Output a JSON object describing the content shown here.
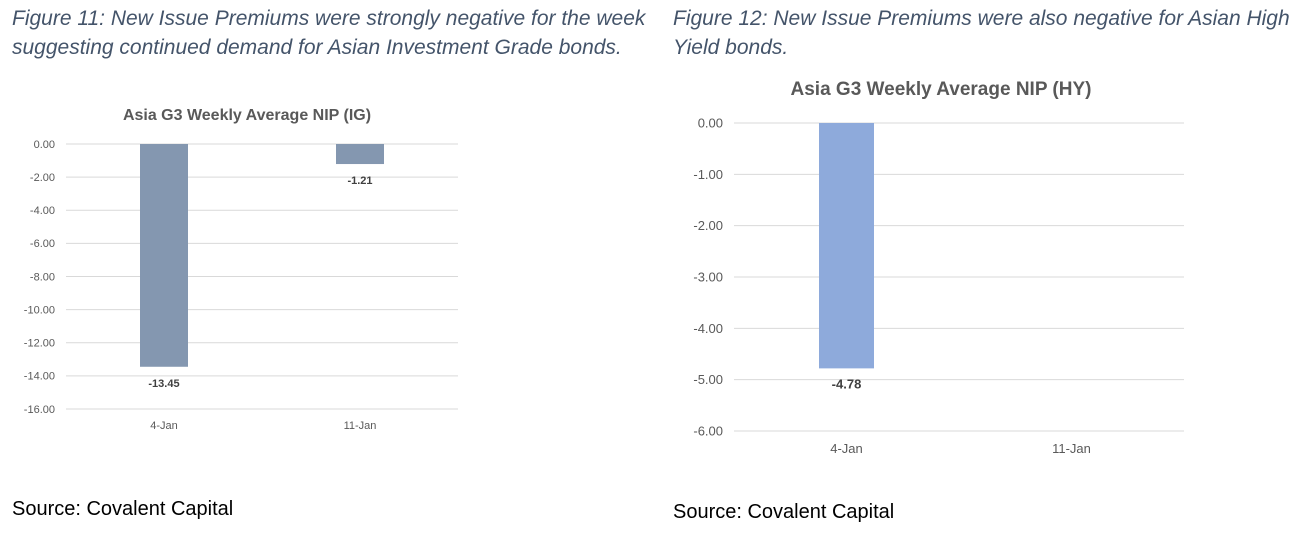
{
  "figures": [
    {
      "caption": "Figure 11: New Issue Premiums were strongly negative for the week suggesting continued demand for Asian Investment Grade bonds.",
      "source": "Source: Covalent Capital",
      "chart_data": {
        "type": "bar",
        "title": "Asia G3 Weekly Average NIP (IG)",
        "categories": [
          "4-Jan",
          "11-Jan"
        ],
        "values": [
          -13.45,
          -1.21
        ],
        "data_labels": [
          "-13.45",
          "-1.21"
        ],
        "y_ticks": [
          "0.00",
          "-2.00",
          "-4.00",
          "-6.00",
          "-8.00",
          "-10.00",
          "-12.00",
          "-14.00",
          "-16.00"
        ],
        "ylim": [
          -16,
          0
        ],
        "grid": true,
        "bar_color": "#8497b0"
      }
    },
    {
      "caption": "Figure 12: New Issue Premiums were also negative for Asian High Yield bonds.",
      "source": "Source: Covalent Capital",
      "chart_data": {
        "type": "bar",
        "title": "Asia G3 Weekly Average NIP (HY)",
        "categories": [
          "4-Jan",
          "11-Jan"
        ],
        "values": [
          -4.78,
          null
        ],
        "data_labels": [
          "-4.78",
          ""
        ],
        "y_ticks": [
          "0.00",
          "-1.00",
          "-2.00",
          "-3.00",
          "-4.00",
          "-5.00",
          "-6.00"
        ],
        "ylim": [
          -6,
          0
        ],
        "grid": true,
        "bar_color": "#8eaadb"
      }
    }
  ]
}
